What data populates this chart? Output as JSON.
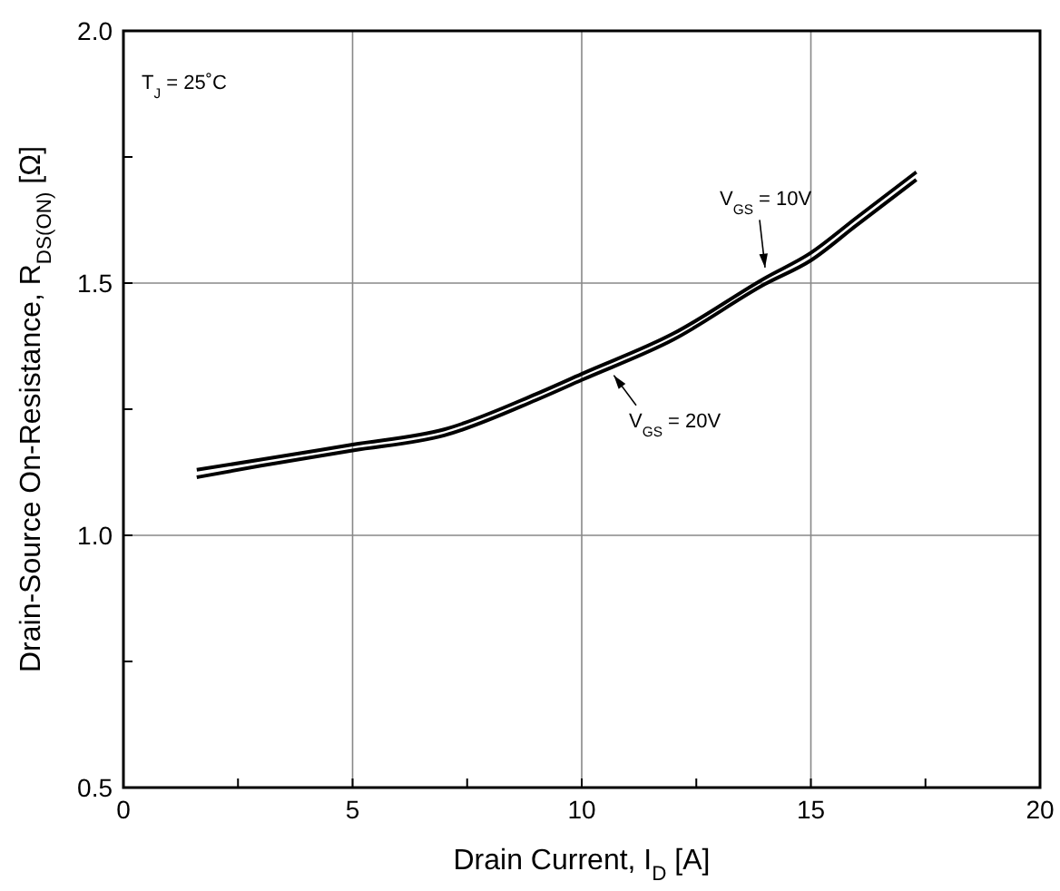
{
  "chart_data": {
    "type": "line",
    "xlabel": "Drain Current, I$_{D}$ [A]",
    "ylabel": "Drain-Source On-Resistance, R$_{DS(ON)}$ [Ω]",
    "annotations": [
      "T$_{J}$ = 25˚C"
    ],
    "xlim": [
      0,
      20
    ],
    "xticks": [
      0,
      {
        "value": 2.5,
        "label": null
      },
      5,
      {
        "value": 7.5,
        "label": null
      },
      10,
      {
        "value": 12.5,
        "label": null
      },
      15,
      {
        "value": 17.5,
        "label": null
      },
      20
    ],
    "ylim": [
      0.5,
      2
    ],
    "yticks": [
      {
        "value": 0.5,
        "label": "0.5"
      },
      {
        "value": 0.75,
        "label": null
      },
      {
        "value": 1,
        "label": "1.0"
      },
      {
        "value": 1.25,
        "label": null
      },
      {
        "value": 1.5,
        "label": "1.5"
      },
      {
        "value": 1.75,
        "label": null
      },
      {
        "value": 2,
        "label": "2.0"
      }
    ],
    "grid": true,
    "marker": "none",
    "line_style": "solid",
    "series": [
      {
        "name": "V$_{GS}$ = 10V",
        "color": "#000000",
        "x": [
          1.6,
          3,
          5,
          7,
          9,
          10,
          12,
          14,
          15,
          16,
          17.3
        ],
        "values": [
          1.13,
          1.15,
          1.18,
          1.21,
          1.28,
          1.32,
          1.4,
          1.51,
          1.56,
          1.63,
          1.72
        ]
      },
      {
        "name": "V$_{GS}$ = 20V",
        "color": "#000000",
        "x": [
          1.6,
          3,
          5,
          7,
          9,
          10,
          12,
          14,
          15,
          16,
          17.3
        ],
        "values": [
          1.115,
          1.138,
          1.168,
          1.198,
          1.268,
          1.308,
          1.388,
          1.498,
          1.545,
          1.615,
          1.705
        ]
      }
    ]
  }
}
